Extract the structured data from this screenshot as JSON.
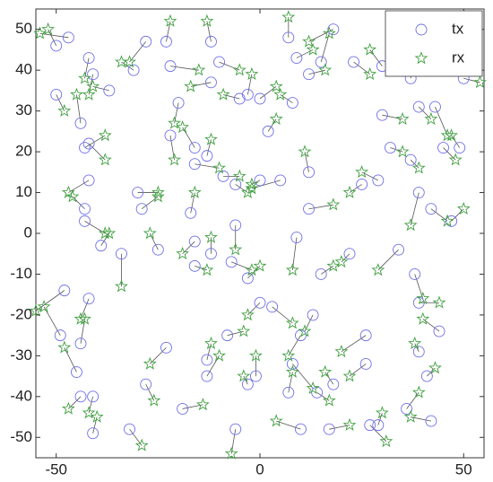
{
  "chart_data": {
    "type": "scatter",
    "xlim": [
      -55,
      55
    ],
    "ylim": [
      -55,
      55
    ],
    "xticks": [
      -50,
      0,
      50
    ],
    "yticks": [
      -50,
      -40,
      -30,
      -20,
      -10,
      0,
      10,
      20,
      30,
      40,
      50
    ],
    "legend": "upper right",
    "series": [
      {
        "name": "tx",
        "color": "#6f6fe8",
        "marker": "circle",
        "x": [
          -50,
          -47,
          -42,
          -41,
          -37,
          -28,
          -31,
          -23,
          -22,
          -12,
          -10,
          -12,
          -5,
          -3,
          0,
          2,
          8,
          9,
          7,
          12,
          15,
          18,
          23,
          30,
          37,
          50,
          -50,
          -44,
          -43,
          -42,
          -20,
          -22,
          -16,
          -13,
          -16,
          -9,
          -6,
          0,
          5,
          12,
          25,
          29,
          30,
          32,
          39,
          43,
          45,
          49,
          37,
          -42,
          -43,
          -43,
          -39,
          -30,
          -29,
          -34,
          -25,
          -17,
          -16,
          -16,
          -12,
          -7,
          -6,
          -3,
          9,
          12,
          15,
          22,
          34,
          38,
          39,
          44,
          42,
          47,
          39,
          -49,
          -48,
          -42,
          -44,
          -45,
          -44,
          -41,
          -32,
          -41,
          -28,
          -23,
          -19,
          -13,
          -13,
          -8,
          -6,
          -3,
          -1,
          0,
          3,
          10,
          13,
          8,
          7,
          10,
          14,
          18,
          17,
          27,
          29,
          26,
          36,
          39,
          42,
          41,
          26
        ],
        "y": [
          46,
          48,
          43,
          39,
          35,
          47,
          40,
          47,
          41,
          47,
          42,
          37,
          33,
          34,
          33,
          25,
          32,
          43,
          48,
          39,
          42,
          50,
          42,
          41,
          38,
          38,
          34,
          27,
          21,
          22,
          32,
          24,
          21,
          19,
          17,
          14,
          12,
          13,
          13,
          15,
          12,
          13,
          29,
          21,
          31,
          31,
          21,
          21,
          18,
          13,
          6,
          3,
          -3,
          10,
          6,
          -5,
          -4,
          5,
          -2,
          -8,
          -5,
          -7,
          2,
          -11,
          -1,
          6,
          -10,
          -5,
          -4,
          -10,
          -17,
          -24,
          6,
          3,
          10,
          -25,
          -14,
          -16,
          -27,
          -34,
          -40,
          -40,
          -48,
          -49,
          -37,
          -28,
          -43,
          -31,
          -35,
          -25,
          -48,
          -37,
          -35,
          -17,
          -18,
          -25,
          -20,
          -32,
          -39,
          -48,
          -39,
          -37,
          -48,
          -47,
          -47,
          -32,
          -43,
          -29,
          -46,
          -35,
          -25
        ]
      },
      {
        "name": "rx",
        "color": "#3f9f3f",
        "marker": "star",
        "x": [
          -52,
          -54,
          -43,
          -42,
          -41,
          -32,
          -34,
          -22,
          -15,
          -13,
          -5,
          -17,
          -9,
          -2,
          4,
          4,
          5,
          13,
          7,
          16,
          17,
          12,
          27,
          27,
          38,
          54,
          -48,
          -45,
          -38,
          -38,
          -21,
          -21,
          -19,
          -12,
          -10,
          -5,
          -3,
          -2,
          -2,
          11,
          22,
          25,
          35,
          35,
          42,
          46,
          48,
          47,
          39,
          -47,
          -46,
          -38,
          -37,
          -25,
          -25,
          -34,
          -27,
          -16,
          -19,
          -13,
          -12,
          -2,
          -6,
          0,
          8,
          18,
          18,
          20,
          29,
          40,
          44,
          40,
          46,
          50,
          37,
          -53,
          -55,
          -44,
          -43,
          -48,
          -47,
          -42,
          -29,
          -40,
          -26,
          -27,
          -14,
          -12,
          -10,
          -4,
          -7,
          -4,
          -1,
          -3,
          8,
          7,
          11,
          13,
          8,
          4,
          17,
          16,
          22,
          31,
          30,
          22,
          39,
          38,
          37,
          43,
          20
        ],
        "y": [
          50,
          49,
          38,
          34,
          36,
          42,
          42,
          52,
          40,
          52,
          40,
          36,
          34,
          39,
          36,
          28,
          34,
          45,
          53,
          40,
          49,
          47,
          39,
          45,
          45,
          37,
          30,
          34,
          24,
          18,
          27,
          18,
          26,
          23,
          16,
          14,
          10,
          12,
          11,
          20,
          10,
          15,
          28,
          20,
          28,
          24,
          18,
          24,
          16,
          10,
          9,
          0,
          0,
          10,
          9,
          -13,
          0,
          10,
          -5,
          -9,
          -1,
          -9,
          -4,
          -8,
          -9,
          7,
          -8,
          -7,
          -9,
          -16,
          -17,
          -21,
          3,
          6,
          2,
          -18,
          -19,
          -21,
          -21,
          -28,
          -43,
          -44,
          -52,
          -45,
          -41,
          -32,
          -42,
          -27,
          -30,
          -24,
          -54,
          -35,
          -30,
          -20,
          -22,
          -30,
          -24,
          -38,
          -34,
          -46,
          -41,
          -34,
          -47,
          -51,
          -44,
          -35,
          -39,
          -27,
          -45,
          -33,
          -29
        ]
      }
    ]
  }
}
